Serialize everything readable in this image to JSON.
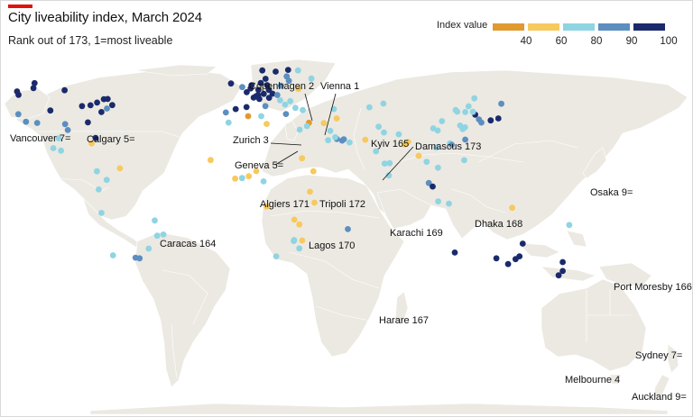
{
  "title": "City liveability index, March 2024",
  "subtitle": "Rank out of 173, 1=most liveable",
  "legend": {
    "title": "Index value",
    "ticks": [
      "40",
      "60",
      "80",
      "90",
      "100"
    ],
    "colors": [
      "#e09a30",
      "#f7c95e",
      "#8fd4e2",
      "#5c8ec0",
      "#1a2a6c"
    ]
  },
  "labels": {
    "vancouver": "Vancouver 7=",
    "calgary": "Calgary 5=",
    "copenhagen": "Copenhagen 2",
    "vienna": "Vienna 1",
    "zurich": "Zurich 3",
    "geneva": "Geneva 5=",
    "kyiv": "Kyiv 165",
    "damascus": "Damascus 173",
    "algiers": "Algiers 171",
    "tripoli": "Tripoli 172",
    "karachi": "Karachi 169",
    "dhaka": "Dhaka 168",
    "osaka": "Osaka 9=",
    "caracas": "Caracas 164",
    "lagos": "Lagos 170",
    "port_moresby": "Port Moresby 166",
    "harare": "Harare 167",
    "sydney": "Sydney 7=",
    "melbourne": "Melbourne 4",
    "auckland": "Auckland 9="
  },
  "cities": [
    {
      "lon": -123.1,
      "lat": 49.3,
      "value": 97
    },
    {
      "lon": -114.1,
      "lat": 51.0,
      "value": 97
    },
    {
      "lon": -113.5,
      "lat": 53.5,
      "value": 95
    },
    {
      "lon": -122.4,
      "lat": 37.8,
      "value": 85
    },
    {
      "lon": -118.2,
      "lat": 34.0,
      "value": 86
    },
    {
      "lon": -122.3,
      "lat": 47.6,
      "value": 93
    },
    {
      "lon": -79.4,
      "lat": 43.7,
      "value": 97
    },
    {
      "lon": -73.6,
      "lat": 45.5,
      "value": 95
    },
    {
      "lon": -75.7,
      "lat": 45.4,
      "value": 95
    },
    {
      "lon": -97.1,
      "lat": 49.9,
      "value": 93
    },
    {
      "lon": -87.6,
      "lat": 41.9,
      "value": 92
    },
    {
      "lon": -71.1,
      "lat": 42.4,
      "value": 92
    },
    {
      "lon": -74.0,
      "lat": 40.7,
      "value": 88
    },
    {
      "lon": -77.0,
      "lat": 38.9,
      "value": 90
    },
    {
      "lon": -83.0,
      "lat": 42.3,
      "value": 91
    },
    {
      "lon": -84.4,
      "lat": 33.7,
      "value": 91
    },
    {
      "lon": -80.2,
      "lat": 25.8,
      "value": 90
    },
    {
      "lon": -95.4,
      "lat": 29.8,
      "value": 88
    },
    {
      "lon": -96.8,
      "lat": 32.8,
      "value": 89
    },
    {
      "lon": -104.9,
      "lat": 39.7,
      "value": 92
    },
    {
      "lon": -112.1,
      "lat": 33.4,
      "value": 85
    },
    {
      "lon": -99.1,
      "lat": 19.4,
      "value": 63
    },
    {
      "lon": -103.3,
      "lat": 20.7,
      "value": 67
    },
    {
      "lon": -100.3,
      "lat": 25.7,
      "value": 68
    },
    {
      "lon": -82.4,
      "lat": 23.1,
      "value": 58
    },
    {
      "lon": -66.9,
      "lat": 10.5,
      "value": 50
    },
    {
      "lon": -74.1,
      "lat": 4.7,
      "value": 65
    },
    {
      "lon": -79.5,
      "lat": 9.0,
      "value": 75
    },
    {
      "lon": -78.5,
      "lat": -0.2,
      "value": 70
    },
    {
      "lon": -77.0,
      "lat": -12.0,
      "value": 70
    },
    {
      "lon": -70.7,
      "lat": -33.4,
      "value": 79
    },
    {
      "lon": -58.4,
      "lat": -34.6,
      "value": 82
    },
    {
      "lon": -56.2,
      "lat": -34.9,
      "value": 84
    },
    {
      "lon": -47.9,
      "lat": -15.8,
      "value": 72
    },
    {
      "lon": -43.2,
      "lat": -22.9,
      "value": 70
    },
    {
      "lon": -46.6,
      "lat": -23.5,
      "value": 72
    },
    {
      "lon": -51.2,
      "lat": -30.0,
      "value": 75
    },
    {
      "lon": -0.1,
      "lat": 51.5,
      "value": 89
    },
    {
      "lon": -3.7,
      "lat": 40.4,
      "value": 91
    },
    {
      "lon": 2.2,
      "lat": 41.4,
      "value": 90
    },
    {
      "lon": 2.3,
      "lat": 48.9,
      "value": 90
    },
    {
      "lon": 4.9,
      "lat": 52.4,
      "value": 95
    },
    {
      "lon": 4.4,
      "lat": 50.8,
      "value": 94
    },
    {
      "lon": 12.6,
      "lat": 55.7,
      "value": 98
    },
    {
      "lon": 10.8,
      "lat": 59.9,
      "value": 95
    },
    {
      "lon": 18.1,
      "lat": 59.3,
      "value": 95
    },
    {
      "lon": 24.9,
      "lat": 60.2,
      "value": 96
    },
    {
      "lon": 13.4,
      "lat": 52.5,
      "value": 95
    },
    {
      "lon": 10.0,
      "lat": 53.6,
      "value": 96
    },
    {
      "lon": 8.7,
      "lat": 50.1,
      "value": 96
    },
    {
      "lon": 11.6,
      "lat": 48.1,
      "value": 97
    },
    {
      "lon": 16.4,
      "lat": 48.2,
      "value": 99
    },
    {
      "lon": 8.5,
      "lat": 47.4,
      "value": 98
    },
    {
      "lon": 6.1,
      "lat": 46.2,
      "value": 97
    },
    {
      "lon": 7.4,
      "lat": 46.9,
      "value": 96
    },
    {
      "lon": 14.4,
      "lat": 50.1,
      "value": 94
    },
    {
      "lon": 19.0,
      "lat": 47.5,
      "value": 88
    },
    {
      "lon": 21.0,
      "lat": 52.2,
      "value": 88
    },
    {
      "lon": 12.5,
      "lat": 41.9,
      "value": 89
    },
    {
      "lon": 9.2,
      "lat": 45.5,
      "value": 90
    },
    {
      "lon": 23.7,
      "lat": 37.9,
      "value": 82
    },
    {
      "lon": -9.1,
      "lat": 38.7,
      "value": 88
    },
    {
      "lon": -6.3,
      "lat": 53.3,
      "value": 92
    },
    {
      "lon": 14.5,
      "lat": 46.1,
      "value": 92
    },
    {
      "lon": 24.1,
      "lat": 56.9,
      "value": 86
    },
    {
      "lon": 25.3,
      "lat": 54.7,
      "value": 86
    },
    {
      "lon": 30.5,
      "lat": 50.5,
      "value": 50
    },
    {
      "lon": 37.6,
      "lat": 55.8,
      "value": 76
    },
    {
      "lon": 30.3,
      "lat": 59.9,
      "value": 78
    },
    {
      "lon": 20.5,
      "lat": 44.8,
      "value": 76
    },
    {
      "lon": 26.1,
      "lat": 44.4,
      "value": 78
    },
    {
      "lon": 23.3,
      "lat": 42.7,
      "value": 72
    },
    {
      "lon": 28.9,
      "lat": 41.0,
      "value": 62
    },
    {
      "lon": 32.9,
      "lat": 39.9,
      "value": 66
    },
    {
      "lon": 3.1,
      "lat": 36.8,
      "value": 38
    },
    {
      "lon": 13.2,
      "lat": 32.9,
      "value": 40
    },
    {
      "lon": 10.2,
      "lat": 36.8,
      "value": 62
    },
    {
      "lon": -7.6,
      "lat": 33.6,
      "value": 60
    },
    {
      "lon": 36.3,
      "lat": 33.5,
      "value": 30
    },
    {
      "lon": 31.2,
      "lat": 30.0,
      "value": 60
    },
    {
      "lon": 35.2,
      "lat": 31.8,
      "value": 75
    },
    {
      "lon": 44.4,
      "lat": 33.3,
      "value": 56
    },
    {
      "lon": 51.4,
      "lat": 35.7,
      "value": 58
    },
    {
      "lon": 46.7,
      "lat": 24.7,
      "value": 70
    },
    {
      "lon": 47.9,
      "lat": 29.4,
      "value": 74
    },
    {
      "lon": 51.5,
      "lat": 25.3,
      "value": 80
    },
    {
      "lon": 54.4,
      "lat": 24.5,
      "value": 84
    },
    {
      "lon": 55.3,
      "lat": 25.2,
      "value": 86
    },
    {
      "lon": 58.4,
      "lat": 23.6,
      "value": 78
    },
    {
      "lon": 50.6,
      "lat": 26.2,
      "value": 77
    },
    {
      "lon": 49.9,
      "lat": 40.4,
      "value": 65
    },
    {
      "lon": 69.3,
      "lat": 41.3,
      "value": 60
    },
    {
      "lon": 76.9,
      "lat": 43.2,
      "value": 70
    },
    {
      "lon": 67.0,
      "lat": 24.9,
      "value": 48
    },
    {
      "lon": 74.3,
      "lat": 31.5,
      "value": 62
    },
    {
      "lon": 77.2,
      "lat": 28.6,
      "value": 60
    },
    {
      "lon": 72.9,
      "lat": 19.1,
      "value": 60
    },
    {
      "lon": 77.6,
      "lat": 12.9,
      "value": 62
    },
    {
      "lon": 80.3,
      "lat": 13.1,
      "value": 60
    },
    {
      "lon": 90.4,
      "lat": 23.8,
      "value": 42
    },
    {
      "lon": 88.4,
      "lat": 22.6,
      "value": 58
    },
    {
      "lon": 79.9,
      "lat": 6.9,
      "value": 60
    },
    {
      "lon": 85.3,
      "lat": 27.7,
      "value": 60
    },
    {
      "lon": 100.5,
      "lat": 13.8,
      "value": 76
    },
    {
      "lon": 96.2,
      "lat": 16.8,
      "value": 55
    },
    {
      "lon": 105.8,
      "lat": 21.0,
      "value": 66
    },
    {
      "lon": 106.7,
      "lat": 10.8,
      "value": 68
    },
    {
      "lon": 101.7,
      "lat": 3.1,
      "value": 80
    },
    {
      "lon": 103.8,
      "lat": 1.3,
      "value": 92
    },
    {
      "lon": 106.8,
      "lat": -6.2,
      "value": 68
    },
    {
      "lon": 112.7,
      "lat": -7.3,
      "value": 65
    },
    {
      "lon": 121.0,
      "lat": 14.6,
      "value": 70
    },
    {
      "lon": 116.4,
      "lat": 39.9,
      "value": 76
    },
    {
      "lon": 121.5,
      "lat": 31.2,
      "value": 77
    },
    {
      "lon": 113.3,
      "lat": 23.1,
      "value": 75
    },
    {
      "lon": 114.1,
      "lat": 22.6,
      "value": 76
    },
    {
      "lon": 114.2,
      "lat": 22.3,
      "value": 84
    },
    {
      "lon": 117.2,
      "lat": 39.1,
      "value": 74
    },
    {
      "lon": 104.1,
      "lat": 30.7,
      "value": 74
    },
    {
      "lon": 108.9,
      "lat": 34.3,
      "value": 74
    },
    {
      "lon": 106.6,
      "lat": 29.6,
      "value": 73
    },
    {
      "lon": 120.2,
      "lat": 30.3,
      "value": 76
    },
    {
      "lon": 118.8,
      "lat": 32.1,
      "value": 75
    },
    {
      "lon": 121.6,
      "lat": 38.9,
      "value": 74
    },
    {
      "lon": 126.6,
      "lat": 45.8,
      "value": 72
    },
    {
      "lon": 123.4,
      "lat": 41.8,
      "value": 72
    },
    {
      "lon": 121.6,
      "lat": 25.0,
      "value": 86
    },
    {
      "lon": 127.0,
      "lat": 37.6,
      "value": 90
    },
    {
      "lon": 129.1,
      "lat": 35.2,
      "value": 86
    },
    {
      "lon": 125.8,
      "lat": 39.0,
      "value": 75
    },
    {
      "lon": 139.7,
      "lat": 35.7,
      "value": 97
    },
    {
      "lon": 135.5,
      "lat": 34.7,
      "value": 97
    },
    {
      "lon": 141.3,
      "lat": 43.1,
      "value": 89
    },
    {
      "lon": 130.4,
      "lat": 33.6,
      "value": 88
    },
    {
      "lon": 147.2,
      "lat": -9.4,
      "value": 40
    },
    {
      "lon": 178.4,
      "lat": -18.1,
      "value": 76
    },
    {
      "lon": 151.2,
      "lat": -33.9,
      "value": 97
    },
    {
      "lon": 145.0,
      "lat": -37.8,
      "value": 98
    },
    {
      "lon": 153.0,
      "lat": -27.5,
      "value": 95
    },
    {
      "lon": 115.9,
      "lat": -32.0,
      "value": 95
    },
    {
      "lon": 138.6,
      "lat": -34.9,
      "value": 96
    },
    {
      "lon": 149.1,
      "lat": -35.3,
      "value": 95
    },
    {
      "lon": 174.8,
      "lat": -36.8,
      "value": 97
    },
    {
      "lon": 174.8,
      "lat": -41.3,
      "value": 93
    },
    {
      "lon": 172.6,
      "lat": -43.5,
      "value": 90
    },
    {
      "lon": 3.4,
      "lat": 6.5,
      "value": 40
    },
    {
      "lon": -0.2,
      "lat": 5.6,
      "value": 60
    },
    {
      "lon": -4.0,
      "lat": 5.3,
      "value": 58
    },
    {
      "lon": -17.4,
      "lat": 14.7,
      "value": 58
    },
    {
      "lon": 7.5,
      "lat": 9.1,
      "value": 55
    },
    {
      "lon": 11.5,
      "lat": 3.9,
      "value": 60
    },
    {
      "lon": 38.7,
      "lat": 9.0,
      "value": 55
    },
    {
      "lon": 36.8,
      "lat": -1.3,
      "value": 58
    },
    {
      "lon": 39.3,
      "lat": -6.8,
      "value": 56
    },
    {
      "lon": 31.0,
      "lat": -17.8,
      "value": 42
    },
    {
      "lon": 28.3,
      "lat": -15.4,
      "value": 55
    },
    {
      "lon": 28.0,
      "lat": -26.2,
      "value": 60
    },
    {
      "lon": 28.2,
      "lat": -25.7,
      "value": 62
    },
    {
      "lon": 18.4,
      "lat": -33.9,
      "value": 68
    },
    {
      "lon": 31.0,
      "lat": -29.9,
      "value": 65
    },
    {
      "lon": 13.2,
      "lat": -8.8,
      "value": 55
    },
    {
      "lon": 32.6,
      "lat": -25.9,
      "value": 56
    },
    {
      "lon": 57.5,
      "lat": -20.2,
      "value": 80
    },
    {
      "lon": 32.5,
      "lat": 15.6,
      "value": 56
    }
  ]
}
